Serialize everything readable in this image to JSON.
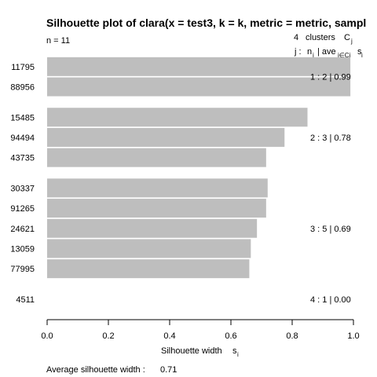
{
  "chart_data": {
    "type": "bar",
    "title": "Silhouette plot of clara(x = test3, k = k, metric = metric, sampl",
    "n_label": "n = 11",
    "header": {
      "clusters_count": "4",
      "clusters_word": "clusters",
      "C_symbol": "C",
      "C_sub": "j",
      "j_label": "j :",
      "n_symbol": "n",
      "n_sub": "j",
      "ave_label": "| ave",
      "ave_sub": "i∈Cj",
      "s_symbol": "s",
      "s_sub": "i"
    },
    "categories": [
      "11795",
      "88956",
      "15485",
      "94494",
      "43735",
      "30337",
      "91265",
      "24621",
      "13059",
      "77995",
      "4511"
    ],
    "cluster_of_bar": [
      1,
      1,
      2,
      2,
      2,
      3,
      3,
      3,
      3,
      3,
      4
    ],
    "values": [
      0.99,
      0.99,
      0.85,
      0.775,
      0.715,
      0.72,
      0.715,
      0.685,
      0.665,
      0.66,
      0.0
    ],
    "clusters": [
      {
        "id": "1",
        "n": "2",
        "ave": "0.99"
      },
      {
        "id": "2",
        "n": "3",
        "ave": "0.78"
      },
      {
        "id": "3",
        "n": "5",
        "ave": "0.69"
      },
      {
        "id": "4",
        "n": "1",
        "ave": "0.00"
      }
    ],
    "xlim": [
      0,
      1
    ],
    "xticks": [
      "0.0",
      "0.2",
      "0.4",
      "0.6",
      "0.8",
      "1.0"
    ],
    "xlabel": "Silhouette width",
    "xlabel_sub": "i",
    "xlabel_symbol": "s",
    "bar_color": "#bebebe",
    "footer_label": "Average silhouette width :",
    "footer_value": "0.71"
  }
}
